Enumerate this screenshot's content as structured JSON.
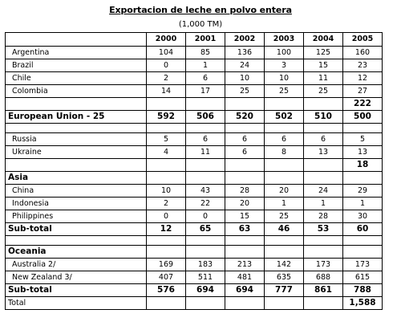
{
  "title": "Exportacion de leche en polvo entera",
  "units": "(1,000 TM)",
  "years": [
    "2000",
    "2001",
    "2002",
    "2003",
    "2004",
    "2005"
  ],
  "rows": [
    {
      "type": "data",
      "indent": true,
      "label": "Argentina",
      "values": [
        "104",
        "85",
        "136",
        "100",
        "125",
        "160"
      ]
    },
    {
      "type": "data",
      "indent": true,
      "label": "Brazil",
      "values": [
        "0",
        "1",
        "24",
        "3",
        "15",
        "23"
      ]
    },
    {
      "type": "data",
      "indent": true,
      "label": "Chile",
      "values": [
        "2",
        "6",
        "10",
        "10",
        "11",
        "12"
      ]
    },
    {
      "type": "data",
      "indent": true,
      "label": "Colombia",
      "values": [
        "14",
        "17",
        "25",
        "25",
        "25",
        "27"
      ]
    },
    {
      "type": "bold",
      "indent": false,
      "label": "",
      "values": [
        "",
        "",
        "",
        "",
        "",
        "222"
      ]
    },
    {
      "type": "bold",
      "indent": false,
      "label": "European Union - 25",
      "values": [
        "592",
        "506",
        "520",
        "502",
        "510",
        "500"
      ]
    },
    {
      "type": "spacer",
      "indent": false,
      "label": "",
      "values": [
        "",
        "",
        "",
        "",
        "",
        ""
      ]
    },
    {
      "type": "data",
      "indent": true,
      "label": "Russia",
      "values": [
        "5",
        "6",
        "6",
        "6",
        "6",
        "5"
      ]
    },
    {
      "type": "data",
      "indent": true,
      "label": "Ukraine",
      "values": [
        "4",
        "11",
        "6",
        "8",
        "13",
        "13"
      ]
    },
    {
      "type": "bold",
      "indent": false,
      "label": "",
      "values": [
        "",
        "",
        "",
        "",
        "",
        "18"
      ]
    },
    {
      "type": "bold",
      "indent": false,
      "label": "Asia",
      "values": [
        "",
        "",
        "",
        "",
        "",
        ""
      ]
    },
    {
      "type": "data",
      "indent": true,
      "label": "China",
      "values": [
        "10",
        "43",
        "28",
        "20",
        "24",
        "29"
      ]
    },
    {
      "type": "data",
      "indent": true,
      "label": "Indonesia",
      "values": [
        "2",
        "22",
        "20",
        "1",
        "1",
        "1"
      ]
    },
    {
      "type": "data",
      "indent": true,
      "label": "Philippines",
      "values": [
        "0",
        "0",
        "15",
        "25",
        "28",
        "30"
      ]
    },
    {
      "type": "bold",
      "indent": false,
      "label": "Sub-total",
      "values": [
        "12",
        "65",
        "63",
        "46",
        "53",
        "60"
      ]
    },
    {
      "type": "spacer",
      "indent": false,
      "label": "",
      "values": [
        "",
        "",
        "",
        "",
        "",
        ""
      ]
    },
    {
      "type": "bold",
      "indent": false,
      "label": "Oceania",
      "values": [
        "",
        "",
        "",
        "",
        "",
        ""
      ]
    },
    {
      "type": "data",
      "indent": true,
      "label": "Australia 2/",
      "values": [
        "169",
        "183",
        "213",
        "142",
        "173",
        "173"
      ]
    },
    {
      "type": "data",
      "indent": true,
      "label": "New Zealand 3/",
      "values": [
        "407",
        "511",
        "481",
        "635",
        "688",
        "615"
      ]
    },
    {
      "type": "bold",
      "indent": false,
      "label": "Sub-total",
      "values": [
        "576",
        "694",
        "694",
        "777",
        "861",
        "788"
      ]
    },
    {
      "type": "total",
      "indent": false,
      "label": "Total",
      "values": [
        "",
        "",
        "",
        "",
        "",
        "1,588"
      ]
    }
  ]
}
